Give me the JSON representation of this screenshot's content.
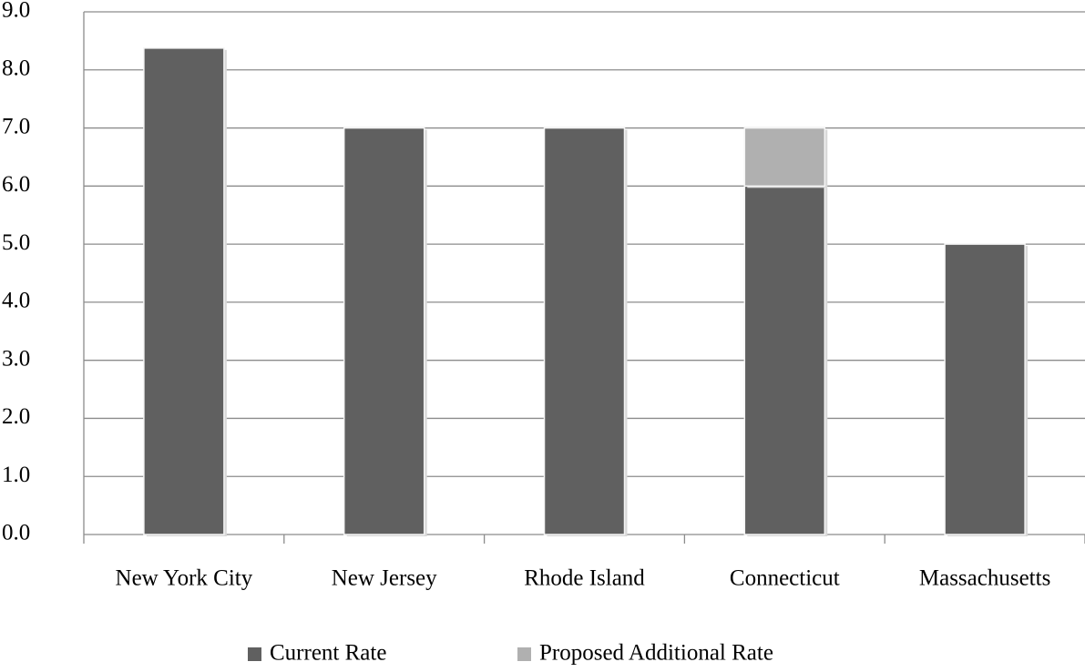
{
  "chart_data": {
    "type": "stacked_bar",
    "categories": [
      "New York City",
      "New Jersey",
      "Rhode Island",
      "Connecticut",
      "Massachusetts"
    ],
    "series": [
      {
        "name": "Current Rate",
        "color": "#606060",
        "values": [
          8.375,
          7,
          7,
          6,
          5
        ]
      },
      {
        "name": "Proposed Additional Rate",
        "color": "#b0b0b0",
        "values": [
          0,
          0,
          0,
          1,
          0
        ]
      }
    ],
    "ylim": [
      0,
      9
    ],
    "yticks": [
      {
        "value": 0,
        "label": "0.0"
      },
      {
        "value": 1,
        "label": "1.0"
      },
      {
        "value": 2,
        "label": "2.0"
      },
      {
        "value": 3,
        "label": "3.0"
      },
      {
        "value": 4,
        "label": "4.0"
      },
      {
        "value": 5,
        "label": "5.0"
      },
      {
        "value": 6,
        "label": "6.0"
      },
      {
        "value": 7,
        "label": "7.0"
      },
      {
        "value": 8,
        "label": "8.0"
      },
      {
        "value": 9,
        "label": "9.0"
      }
    ],
    "grid": true,
    "legend": "bottom"
  }
}
